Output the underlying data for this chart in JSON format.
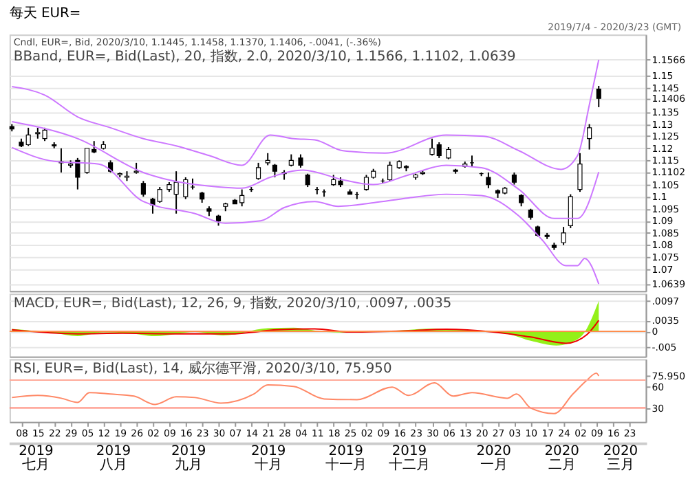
{
  "chart_data": [
    {
      "type": "candlestick",
      "title": "每天 EUR=",
      "subtitle": "Cndl, EUR=, Bid, 2020/3/10, 1.1445, 1.1458, 1.1370, 1.1406, -.0041, (-.36%)",
      "color": "#000000",
      "grid": "y",
      "tick_labels": "y",
      "annotations": [
        "BBand, EUR=, Bid(Last), 20, 指数, 2.0, 2020/3/10, 1.1566, 1.1102, 1.0639",
        "2019/7/4 - 2020/3/23 (GMT)"
      ],
      "xlim": [
        "2019-07-03",
        "2020-03-30"
      ],
      "ylim": [
        1.061,
        1.167
      ],
      "yticks": [
        1.0639,
        1.07,
        1.075,
        1.08,
        1.085,
        1.09,
        1.095,
        1.1,
        1.105,
        1.1102,
        1.115,
        1.12,
        1.125,
        1.13,
        1.135,
        1.1406,
        1.145,
        1.15,
        1.1566
      ],
      "x": [
        "2019-07-04",
        "2019-07-08",
        "2019-07-11",
        "2019-07-15",
        "2019-07-18",
        "2019-07-22",
        "2019-07-25",
        "2019-07-29",
        "2019-08-01",
        "2019-08-05",
        "2019-08-08",
        "2019-08-12",
        "2019-08-15",
        "2019-08-19",
        "2019-08-22",
        "2019-08-26",
        "2019-08-29",
        "2019-09-02",
        "2019-09-05",
        "2019-09-09",
        "2019-09-12",
        "2019-09-16",
        "2019-09-19",
        "2019-09-23",
        "2019-09-26",
        "2019-09-30",
        "2019-10-03",
        "2019-10-07",
        "2019-10-10",
        "2019-10-14",
        "2019-10-17",
        "2019-10-21",
        "2019-10-24",
        "2019-10-28",
        "2019-10-31",
        "2019-11-04",
        "2019-11-07",
        "2019-11-11",
        "2019-11-14",
        "2019-11-18",
        "2019-11-21",
        "2019-11-25",
        "2019-11-28",
        "2019-12-02",
        "2019-12-05",
        "2019-12-09",
        "2019-12-12",
        "2019-12-16",
        "2019-12-19",
        "2019-12-23",
        "2019-12-26",
        "2019-12-30",
        "2020-01-02",
        "2020-01-06",
        "2020-01-09",
        "2020-01-13",
        "2020-01-16",
        "2020-01-20",
        "2020-01-23",
        "2020-01-27",
        "2020-01-30",
        "2020-02-03",
        "2020-02-06",
        "2020-02-10",
        "2020-02-13",
        "2020-02-17",
        "2020-02-20",
        "2020-02-24",
        "2020-02-27",
        "2020-03-02",
        "2020-03-06",
        "2020-03-10"
      ],
      "ohlc": [
        [
          1.129,
          1.13,
          1.127,
          1.128
        ],
        [
          1.1225,
          1.124,
          1.1205,
          1.121
        ],
        [
          1.1215,
          1.1285,
          1.121,
          1.1255
        ],
        [
          1.126,
          1.1285,
          1.124,
          1.1265
        ],
        [
          1.124,
          1.1285,
          1.123,
          1.1275
        ],
        [
          1.1215,
          1.1225,
          1.12,
          1.121
        ],
        [
          1.114,
          1.12,
          1.11,
          1.1145
        ],
        [
          1.113,
          1.115,
          1.112,
          1.1135
        ],
        [
          1.115,
          1.116,
          1.103,
          1.108
        ],
        [
          1.11,
          1.12,
          1.1095,
          1.12
        ],
        [
          1.1195,
          1.123,
          1.118,
          1.1185
        ],
        [
          1.12,
          1.123,
          1.1195,
          1.1215
        ],
        [
          1.114,
          1.115,
          1.11,
          1.1105
        ],
        [
          1.109,
          1.11,
          1.108,
          1.1095
        ],
        [
          1.108,
          1.1105,
          1.1065,
          1.1085
        ],
        [
          1.11,
          1.114,
          1.1095,
          1.1105
        ],
        [
          1.1055,
          1.1065,
          1.1,
          1.101
        ],
        [
          1.099,
          1.0995,
          1.093,
          1.0965
        ],
        [
          1.098,
          1.104,
          1.0975,
          1.103
        ],
        [
          1.103,
          1.106,
          1.102,
          1.105
        ],
        [
          1.101,
          1.1105,
          1.093,
          1.106
        ],
        [
          1.1,
          1.108,
          1.099,
          1.107
        ],
        [
          1.104,
          1.1075,
          1.103,
          1.104
        ],
        [
          1.1015,
          1.102,
          1.0975,
          1.099
        ],
        [
          1.095,
          1.096,
          1.092,
          1.094
        ],
        [
          1.092,
          1.0925,
          1.088,
          1.09
        ],
        [
          1.096,
          1.0975,
          1.094,
          1.097
        ],
        [
          1.0985,
          1.099,
          1.097,
          1.097
        ],
        [
          1.0975,
          1.103,
          1.096,
          1.1005
        ],
        [
          1.103,
          1.104,
          1.102,
          1.103
        ],
        [
          1.1075,
          1.114,
          1.107,
          1.112
        ],
        [
          1.114,
          1.118,
          1.113,
          1.115
        ],
        [
          1.113,
          1.1135,
          1.108,
          1.1105
        ],
        [
          1.1095,
          1.111,
          1.107,
          1.11
        ],
        [
          1.113,
          1.1175,
          1.1125,
          1.115
        ],
        [
          1.116,
          1.1175,
          1.112,
          1.113
        ],
        [
          1.109,
          1.1095,
          1.104,
          1.105
        ],
        [
          1.103,
          1.104,
          1.101,
          1.103
        ],
        [
          1.102,
          1.103,
          1.1,
          1.102
        ],
        [
          1.105,
          1.109,
          1.1045,
          1.107
        ],
        [
          1.1065,
          1.108,
          1.104,
          1.105
        ],
        [
          1.102,
          1.103,
          1.101,
          1.101
        ],
        [
          1.101,
          1.102,
          1.099,
          1.101
        ],
        [
          1.103,
          1.109,
          1.1025,
          1.108
        ],
        [
          1.108,
          1.1115,
          1.1075,
          1.1105
        ],
        [
          1.1065,
          1.1075,
          1.1055,
          1.1065
        ],
        [
          1.107,
          1.1145,
          1.1065,
          1.113
        ],
        [
          1.112,
          1.115,
          1.1115,
          1.1145
        ],
        [
          1.1125,
          1.113,
          1.1105,
          1.112
        ],
        [
          1.108,
          1.1095,
          1.107,
          1.109
        ],
        [
          1.1095,
          1.111,
          1.109,
          1.11
        ],
        [
          1.1175,
          1.124,
          1.117,
          1.12
        ],
        [
          1.1215,
          1.1225,
          1.116,
          1.117
        ],
        [
          1.116,
          1.1205,
          1.1155,
          1.1195
        ],
        [
          1.111,
          1.1115,
          1.1095,
          1.1105
        ],
        [
          1.1125,
          1.1145,
          1.112,
          1.1135
        ],
        [
          1.114,
          1.117,
          1.1125,
          1.114
        ],
        [
          1.1095,
          1.11,
          1.1085,
          1.1095
        ],
        [
          1.108,
          1.11,
          1.1035,
          1.105
        ],
        [
          1.1025,
          1.103,
          1.0995,
          1.1015
        ],
        [
          1.1015,
          1.104,
          1.101,
          1.1035
        ],
        [
          1.109,
          1.11,
          1.105,
          1.106
        ],
        [
          1.1005,
          1.101,
          1.096,
          1.0975
        ],
        [
          1.0945,
          1.095,
          1.0905,
          1.0915
        ],
        [
          1.0875,
          1.088,
          1.0835,
          1.084
        ],
        [
          1.084,
          1.085,
          1.0825,
          1.0835
        ],
        [
          1.08,
          1.081,
          1.078,
          1.079
        ],
        [
          1.081,
          1.0875,
          1.08,
          1.085
        ],
        [
          1.088,
          1.101,
          1.087,
          1.1
        ],
        [
          1.103,
          1.118,
          1.102,
          1.1135
        ],
        [
          1.124,
          1.13,
          1.1195,
          1.1285
        ],
        [
          1.1445,
          1.1458,
          1.137,
          1.1406
        ]
      ],
      "series": [
        {
          "type": "line",
          "color": "#cc77ff",
          "x": [
            "2019-07-04",
            "2019-07-18",
            "2019-08-01",
            "2019-08-15",
            "2019-08-29",
            "2019-09-12",
            "2019-09-26",
            "2019-10-10",
            "2019-10-22",
            "2019-11-01",
            "2019-11-10",
            "2019-11-22",
            "2019-12-10",
            "2020-01-05",
            "2020-01-21",
            "2020-02-05",
            "2020-02-23",
            "2020-03-01",
            "2020-03-06",
            "2020-03-10"
          ],
          "values": [
            1.1455,
            1.142,
            1.133,
            1.1285,
            1.124,
            1.121,
            1.117,
            1.113,
            1.1255,
            1.124,
            1.1235,
            1.119,
            1.118,
            1.1255,
            1.125,
            1.119,
            1.1113,
            1.117,
            1.138,
            1.1566
          ]
        },
        {
          "type": "line",
          "color": "#cc77ff",
          "x": [
            "2019-07-04",
            "2019-08-01",
            "2019-08-29",
            "2019-09-30",
            "2019-10-10",
            "2019-10-22",
            "2019-11-05",
            "2019-11-22",
            "2019-12-05",
            "2019-12-20",
            "2020-01-05",
            "2020-01-20",
            "2020-02-05",
            "2020-02-20",
            "2020-03-01",
            "2020-03-10"
          ],
          "values": [
            1.131,
            1.124,
            1.11,
            1.104,
            1.1035,
            1.108,
            1.111,
            1.107,
            1.105,
            1.109,
            1.113,
            1.112,
            1.103,
            1.091,
            1.091,
            1.1102
          ]
        },
        {
          "type": "line",
          "color": "#cc77ff",
          "x": [
            "2019-07-04",
            "2019-07-22",
            "2019-08-10",
            "2019-08-29",
            "2019-09-20",
            "2019-10-03",
            "2019-10-18",
            "2019-10-28",
            "2019-11-10",
            "2019-11-20",
            "2019-12-05",
            "2019-12-20",
            "2020-01-05",
            "2020-01-20",
            "2020-02-05",
            "2020-02-15",
            "2020-02-25",
            "2020-03-01",
            "2020-03-04",
            "2020-03-10"
          ],
          "values": [
            1.1203,
            1.1146,
            1.1135,
            1.098,
            1.093,
            1.089,
            1.09,
            1.0955,
            1.098,
            1.096,
            1.0975,
            1.0995,
            1.101,
            1.1005,
            1.092,
            1.082,
            1.0715,
            1.0715,
            1.0745,
            1.0639
          ]
        }
      ]
    },
    {
      "type": "line",
      "subtitle": "MACD, EUR=, Bid(Last), 12, 26, 9, 指数, 2020/3/10, .0097, .0035",
      "grid": "y",
      "tick_labels": "y",
      "xlim": [
        "2019-07-03",
        "2020-03-30"
      ],
      "ylim": [
        -0.008,
        0.012
      ],
      "yticks": [
        {
          "value": 0.0097,
          "label": ".0097"
        },
        {
          "value": 0.0035,
          "label": ".0035"
        },
        0,
        {
          "value": -0.005,
          "label": "-.005"
        }
      ],
      "ref_lines": [
        {
          "axis": "y",
          "value": 0,
          "color": "#ff8844"
        }
      ],
      "series": [
        {
          "type": "area",
          "color": "#88ee00",
          "x": [
            "2019-07-04",
            "2019-07-22",
            "2019-08-01",
            "2019-08-12",
            "2019-08-22",
            "2019-09-03",
            "2019-09-20",
            "2019-10-02",
            "2019-10-21",
            "2019-11-01",
            "2019-11-15",
            "2019-11-25",
            "2019-12-16",
            "2019-12-31",
            "2020-01-15",
            "2020-01-31",
            "2020-02-10",
            "2020-02-21",
            "2020-03-02",
            "2020-03-10"
          ],
          "values": [
            0.0008,
            -0.0005,
            -0.0015,
            -0.0003,
            -0.0005,
            -0.0015,
            -0.0002,
            -0.0013,
            0.001,
            0.0012,
            -0.0002,
            -0.0004,
            0.0003,
            0.0009,
            0.0003,
            -0.0008,
            -0.003,
            -0.0045,
            -0.002,
            0.0097
          ]
        },
        {
          "type": "line",
          "color": "#ee0000",
          "x": [
            "2019-07-04",
            "2019-08-01",
            "2019-08-20",
            "2019-09-10",
            "2019-10-05",
            "2019-10-25",
            "2019-11-10",
            "2019-11-25",
            "2019-12-20",
            "2020-01-05",
            "2020-01-25",
            "2020-02-10",
            "2020-02-25",
            "2020-03-05",
            "2020-03-10"
          ],
          "values": [
            0.0005,
            -0.0008,
            -0.0006,
            -0.0008,
            -0.0008,
            0.0005,
            0.0008,
            -0.0002,
            0.0002,
            0.0007,
            -0.0002,
            -0.0018,
            -0.0038,
            -0.001,
            0.0035
          ]
        }
      ]
    },
    {
      "type": "line",
      "subtitle": "RSI, EUR=, Bid(Last), 14, 威尔德平滑, 2020/3/10, 75.950",
      "xlim": [
        "2019-07-03",
        "2020-03-30"
      ],
      "ylim": [
        10,
        100
      ],
      "yticks": [
        {
          "value": 75.95,
          "label": "75.950"
        },
        60,
        30
      ],
      "ref_lines": [
        {
          "axis": "y",
          "value": 70,
          "color": "#ffaa99"
        },
        {
          "axis": "y",
          "value": 30,
          "color": "#ff8877"
        }
      ],
      "xticks": [
        {
          "value": "2019-07-08",
          "label": "08"
        },
        {
          "value": "2019-07-15",
          "label": "15"
        },
        {
          "value": "2019-07-22",
          "label": "22"
        },
        {
          "value": "2019-07-29",
          "label": "29"
        },
        {
          "value": "2019-08-05",
          "label": "05"
        },
        {
          "value": "2019-08-12",
          "label": "12"
        },
        {
          "value": "2019-08-19",
          "label": "19"
        },
        {
          "value": "2019-08-26",
          "label": "26"
        },
        {
          "value": "2019-09-02",
          "label": "02"
        },
        {
          "value": "2019-09-09",
          "label": "09"
        },
        {
          "value": "2019-09-16",
          "label": "16"
        },
        {
          "value": "2019-09-23",
          "label": "23"
        },
        {
          "value": "2019-09-30",
          "label": "30"
        },
        {
          "value": "2019-10-07",
          "label": "07"
        },
        {
          "value": "2019-10-14",
          "label": "14"
        },
        {
          "value": "2019-10-21",
          "label": "21"
        },
        {
          "value": "2019-10-28",
          "label": "28"
        },
        {
          "value": "2019-11-04",
          "label": "04"
        },
        {
          "value": "2019-11-11",
          "label": "11"
        },
        {
          "value": "2019-11-18",
          "label": "18"
        },
        {
          "value": "2019-11-25",
          "label": "25"
        },
        {
          "value": "2019-12-02",
          "label": "02"
        },
        {
          "value": "2019-12-09",
          "label": "09"
        },
        {
          "value": "2019-12-16",
          "label": "16"
        },
        {
          "value": "2019-12-23",
          "label": "23"
        },
        {
          "value": "2019-12-30",
          "label": "30"
        },
        {
          "value": "2020-01-06",
          "label": "06"
        },
        {
          "value": "2020-01-13",
          "label": "13"
        },
        {
          "value": "2020-01-20",
          "label": "20"
        },
        {
          "value": "2020-01-27",
          "label": "27"
        },
        {
          "value": "2020-02-03",
          "label": "03"
        },
        {
          "value": "2020-02-10",
          "label": "10"
        },
        {
          "value": "2020-02-17",
          "label": "17"
        },
        {
          "value": "2020-02-24",
          "label": "24"
        },
        {
          "value": "2020-03-02",
          "label": "02"
        },
        {
          "value": "2020-03-09",
          "label": "09"
        },
        {
          "value": "2020-03-16",
          "label": "16"
        },
        {
          "value": "2020-03-23",
          "label": "23"
        }
      ],
      "x2lim": [
        "2019-07-03",
        "2020-03-30"
      ],
      "x2ticks": [
        {
          "value": "2019-07-14",
          "label": "2019 七月"
        },
        {
          "value": "2019-08-16",
          "label": "2019 八月"
        },
        {
          "value": "2019-09-17",
          "label": "2019 九月"
        },
        {
          "value": "2019-10-21",
          "label": "2019 十月"
        },
        {
          "value": "2019-11-23",
          "label": "2019 十一月"
        },
        {
          "value": "2019-12-20",
          "label": "2019 十二月"
        },
        {
          "value": "2020-01-25",
          "label": "2020 一月"
        },
        {
          "value": "2020-02-23",
          "label": "2020 二月"
        },
        {
          "value": "2020-03-19",
          "label": "2020 三月"
        }
      ],
      "series": [
        {
          "type": "line",
          "color": "#ff8866",
          "x": [
            "2019-07-04",
            "2019-07-15",
            "2019-07-25",
            "2019-08-01",
            "2019-08-06",
            "2019-08-15",
            "2019-08-25",
            "2019-09-03",
            "2019-09-12",
            "2019-09-20",
            "2019-10-01",
            "2019-10-15",
            "2019-10-21",
            "2019-11-01",
            "2019-11-14",
            "2019-11-28",
            "2019-12-13",
            "2019-12-20",
            "2019-12-31",
            "2020-01-08",
            "2020-01-16",
            "2020-01-31",
            "2020-02-04",
            "2020-02-10",
            "2020-02-20",
            "2020-02-28",
            "2020-03-05",
            "2020-03-09",
            "2020-03-10"
          ],
          "values": [
            45,
            48,
            44,
            38,
            52,
            50,
            47,
            35,
            46,
            45,
            37,
            50,
            63,
            61,
            43,
            42,
            60,
            48,
            66,
            47,
            52,
            44,
            50,
            30,
            22,
            50,
            70,
            80,
            75.95
          ]
        }
      ]
    }
  ]
}
